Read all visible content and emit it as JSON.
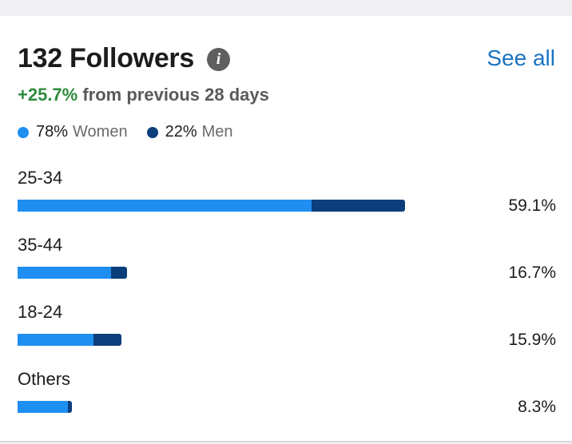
{
  "header": {
    "title": "132 Followers",
    "info_icon": "info-icon",
    "see_all": "See all"
  },
  "growth": {
    "pct": "+25.7%",
    "text": " from previous 28 days"
  },
  "legend": [
    {
      "value": "78%",
      "label": "Women",
      "color": "#1f8ef1"
    },
    {
      "value": "22%",
      "label": "Men",
      "color": "#0b3e7a"
    }
  ],
  "chart_data": {
    "type": "bar",
    "orientation": "horizontal",
    "stacked": true,
    "categories": [
      "25-34",
      "35-44",
      "18-24",
      "Others"
    ],
    "values": [
      59.1,
      16.7,
      15.9,
      8.3
    ],
    "value_labels": [
      "59.1%",
      "16.7%",
      "15.9%",
      "8.3%"
    ],
    "series": [
      {
        "name": "Women",
        "values": [
          44.8,
          14.3,
          11.6,
          7.7
        ],
        "color": "#1f8ef1"
      },
      {
        "name": "Men",
        "values": [
          14.3,
          2.4,
          4.3,
          0.6
        ],
        "color": "#0b3e7a"
      }
    ],
    "xlim": [
      0,
      100
    ]
  }
}
